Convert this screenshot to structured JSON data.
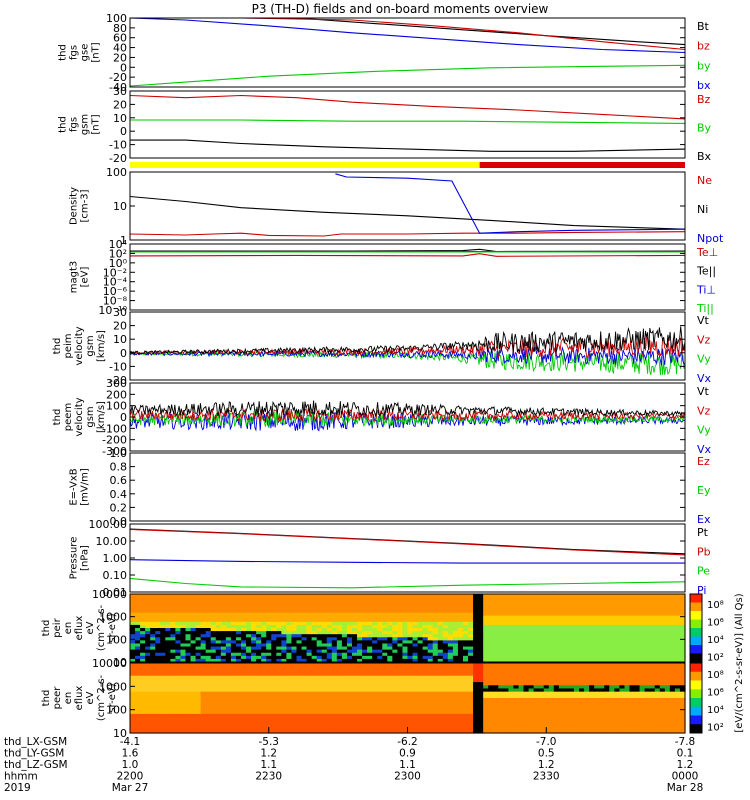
{
  "title": "P3 (TH-D) fields and on-board moments overview",
  "colors": {
    "black": "#000000",
    "red": "#cc0000",
    "green": "#00cc00",
    "blue": "#0000dd",
    "yellow": "#ffff00",
    "red_bar": "#dd0000"
  },
  "chart_data": [
    {
      "id": "fgs_gse",
      "type": "line",
      "ylabel": [
        "thd",
        "fgs",
        "gse",
        "[nT]"
      ],
      "yticks": [
        "100",
        "80",
        "60",
        "40",
        "20",
        "0",
        "-20",
        "-40"
      ],
      "ylim": [
        -40,
        100
      ],
      "legend": [
        {
          "label": "Bt",
          "color": "black"
        },
        {
          "label": "bz",
          "color": "red"
        },
        {
          "label": "by",
          "color": "green"
        },
        {
          "label": "bx",
          "color": "blue"
        }
      ],
      "series": [
        {
          "color": "black",
          "x": [
            0,
            0.15,
            0.3,
            0.45,
            0.6,
            0.75,
            0.9,
            1.0
          ],
          "y": [
            120,
            110,
            100,
            88,
            76,
            64,
            53,
            46
          ]
        },
        {
          "color": "red",
          "x": [
            0,
            0.2,
            0.4,
            0.55,
            0.7,
            0.85,
            1.0
          ],
          "y": [
            118,
            108,
            96,
            84,
            70,
            52,
            36
          ]
        },
        {
          "color": "blue",
          "x": [
            0,
            0.1,
            0.25,
            0.4,
            0.55,
            0.7,
            0.85,
            1.0
          ],
          "y": [
            102,
            96,
            84,
            70,
            58,
            46,
            36,
            30
          ]
        },
        {
          "color": "green",
          "x": [
            0,
            0.1,
            0.25,
            0.45,
            0.65,
            0.85,
            1.0
          ],
          "y": [
            -38,
            -30,
            -18,
            -8,
            -1,
            2,
            4
          ]
        }
      ]
    },
    {
      "id": "fgs_gsm",
      "type": "line",
      "ylabel": [
        "thd",
        "fgs",
        "gsm",
        "[nT]"
      ],
      "yticks": [
        "30",
        "20",
        "10",
        "0",
        "-10",
        "-20"
      ],
      "ylim": [
        -28,
        32
      ],
      "legend": [
        {
          "label": "Bz",
          "color": "red"
        },
        {
          "label": "By",
          "color": "green"
        },
        {
          "label": "Bx",
          "color": "black"
        }
      ],
      "series": [
        {
          "color": "red",
          "x": [
            0,
            0.1,
            0.2,
            0.3,
            0.4,
            0.55,
            0.7,
            0.85,
            1.0
          ],
          "y": [
            28,
            26,
            28,
            26,
            22,
            18,
            15,
            11,
            7
          ]
        },
        {
          "color": "green",
          "x": [
            0,
            0.2,
            0.4,
            0.6,
            0.8,
            1.0
          ],
          "y": [
            6,
            6,
            5,
            5,
            4,
            3
          ]
        },
        {
          "color": "black",
          "x": [
            0,
            0.1,
            0.2,
            0.35,
            0.5,
            0.65,
            0.8,
            0.9,
            1.0
          ],
          "y": [
            -12,
            -12,
            -15,
            -18,
            -20,
            -22,
            -22,
            -21,
            -20
          ]
        }
      ]
    },
    {
      "id": "mode_bar",
      "type": "bar",
      "segments": [
        {
          "x0": 0,
          "x1": 0.63,
          "color": "yellow"
        },
        {
          "x0": 0.63,
          "x1": 1.0,
          "color": "red_bar"
        }
      ]
    },
    {
      "id": "density",
      "type": "line",
      "scale": "log",
      "ylabel": [
        "Density",
        "[cm-3]"
      ],
      "yticks": [
        "100",
        "10",
        "1"
      ],
      "ylim": [
        0.3,
        300
      ],
      "legend": [
        {
          "label": "Ne",
          "color": "red"
        },
        {
          "label": "Ni",
          "color": "black"
        },
        {
          "label": "Npot",
          "color": "blue"
        }
      ],
      "series": [
        {
          "color": "black",
          "x": [
            0,
            0.1,
            0.2,
            0.35,
            0.5,
            0.65,
            0.8,
            1.0
          ],
          "y": [
            25,
            15,
            8,
            5,
            3.5,
            2.2,
            1.3,
            0.9
          ]
        },
        {
          "color": "red",
          "x": [
            0,
            0.1,
            0.15,
            0.2,
            0.25,
            0.35,
            0.38,
            0.5,
            0.6,
            0.7,
            0.8,
            1.0
          ],
          "y": [
            0.55,
            0.5,
            0.55,
            0.6,
            0.48,
            0.45,
            0.55,
            0.55,
            0.6,
            0.6,
            0.65,
            0.7
          ]
        },
        {
          "color": "blue",
          "x": [
            0.37,
            0.39,
            0.5,
            0.58,
            0.63,
            0.7,
            0.8,
            1.0
          ],
          "y": [
            250,
            180,
            160,
            120,
            0.6,
            0.7,
            0.8,
            0.9
          ]
        }
      ]
    },
    {
      "id": "temperature",
      "type": "line",
      "scale": "log",
      "ylabel": [
        "magt3",
        "[eV]"
      ],
      "yticks": [
        "10⁴",
        "10²",
        "10⁰",
        "10⁻²",
        "10⁻⁴",
        "10⁻⁶",
        "10⁻⁸",
        "10⁻¹⁰"
      ],
      "ylim": [
        -10,
        5
      ],
      "legend": [
        {
          "label": "Te⊥",
          "color": "red"
        },
        {
          "label": "Te||",
          "color": "black"
        },
        {
          "label": "Ti⊥",
          "color": "blue"
        },
        {
          "label": "Ti||",
          "color": "green"
        }
      ],
      "series": [
        {
          "color": "black",
          "x": [
            0,
            0.4,
            0.6,
            0.63,
            0.66,
            1.0
          ],
          "y": [
            3.4,
            3.4,
            3.5,
            3.8,
            3.3,
            3.4
          ]
        },
        {
          "color": "blue",
          "x": [
            0,
            1.0
          ],
          "y": [
            3.3,
            3.3
          ]
        },
        {
          "color": "green",
          "x": [
            0,
            1.0
          ],
          "y": [
            3.2,
            3.2
          ]
        },
        {
          "color": "red",
          "x": [
            0,
            0.3,
            0.6,
            0.63,
            0.66,
            1.0
          ],
          "y": [
            2.3,
            2.4,
            2.3,
            2.8,
            2.2,
            2.4
          ]
        }
      ]
    },
    {
      "id": "peim_velocity",
      "type": "line",
      "noisy": true,
      "ylabel": [
        "thd",
        "peim",
        "velocity",
        "gsm",
        "[km/s]"
      ],
      "yticks": [
        "30",
        "20",
        "10",
        "0",
        "-10",
        "-20"
      ],
      "ylim": [
        -20,
        32
      ],
      "legend": [
        {
          "label": "Vt",
          "color": "black"
        },
        {
          "label": "Vz",
          "color": "red"
        },
        {
          "label": "Vy",
          "color": "green"
        },
        {
          "label": "Vx",
          "color": "blue"
        }
      ],
      "series": [
        {
          "color": "green",
          "base": [
            [
              0,
              0
            ],
            [
              0.5,
              -1
            ],
            [
              0.65,
              -5
            ],
            [
              1.0,
              -8
            ]
          ],
          "amp": [
            [
              0,
              1
            ],
            [
              0.6,
              3
            ],
            [
              0.65,
              7
            ],
            [
              1.0,
              9
            ]
          ]
        },
        {
          "color": "blue",
          "base": [
            [
              0,
              0
            ],
            [
              0.5,
              0
            ],
            [
              0.65,
              -1
            ],
            [
              1.0,
              -2
            ]
          ],
          "amp": [
            [
              0,
              1
            ],
            [
              0.6,
              3
            ],
            [
              0.65,
              6
            ],
            [
              1.0,
              7
            ]
          ]
        },
        {
          "color": "red",
          "base": [
            [
              0,
              1
            ],
            [
              0.5,
              2
            ],
            [
              0.65,
              4
            ],
            [
              1.0,
              6
            ]
          ],
          "amp": [
            [
              0,
              1
            ],
            [
              0.6,
              3
            ],
            [
              0.65,
              7
            ],
            [
              1.0,
              8
            ]
          ]
        },
        {
          "color": "black",
          "base": [
            [
              0,
              1
            ],
            [
              0.5,
              4
            ],
            [
              0.65,
              8
            ],
            [
              1.0,
              12
            ]
          ],
          "amp": [
            [
              0,
              1
            ],
            [
              0.6,
              3
            ],
            [
              0.65,
              8
            ],
            [
              1.0,
              9
            ]
          ]
        }
      ]
    },
    {
      "id": "peem_velocity",
      "type": "line",
      "noisy": true,
      "ylabel": [
        "thd",
        "peem",
        "velocity",
        "gsm",
        "[km/s]"
      ],
      "yticks": [
        "300",
        "200",
        "100",
        "0",
        "-100",
        "-200",
        "-300"
      ],
      "ylim": [
        -300,
        300
      ],
      "legend": [
        {
          "label": "Vt",
          "color": "black"
        },
        {
          "label": "Vz",
          "color": "red"
        },
        {
          "label": "Vy",
          "color": "green"
        },
        {
          "label": "Vx",
          "color": "blue"
        }
      ],
      "series": [
        {
          "color": "blue",
          "base": [
            [
              0,
              -40
            ],
            [
              1.0,
              -30
            ]
          ],
          "amp": [
            [
              0,
              60
            ],
            [
              0.3,
              90
            ],
            [
              0.6,
              50
            ],
            [
              1.0,
              30
            ]
          ]
        },
        {
          "color": "green",
          "base": [
            [
              0,
              -20
            ],
            [
              1.0,
              -20
            ]
          ],
          "amp": [
            [
              0,
              50
            ],
            [
              0.3,
              70
            ],
            [
              0.6,
              40
            ],
            [
              1.0,
              25
            ]
          ]
        },
        {
          "color": "red",
          "base": [
            [
              0,
              20
            ],
            [
              1.0,
              10
            ]
          ],
          "amp": [
            [
              0,
              40
            ],
            [
              0.3,
              60
            ],
            [
              0.6,
              40
            ],
            [
              1.0,
              25
            ]
          ]
        },
        {
          "color": "black",
          "base": [
            [
              0,
              60
            ],
            [
              0.3,
              80
            ],
            [
              0.6,
              60
            ],
            [
              1.0,
              30
            ]
          ],
          "amp": [
            [
              0,
              40
            ],
            [
              0.3,
              80
            ],
            [
              0.6,
              40
            ],
            [
              1.0,
              20
            ]
          ]
        }
      ]
    },
    {
      "id": "efield",
      "type": "line",
      "ylabel": [
        "E=-VxB",
        "[mV/m]"
      ],
      "yticks": [
        "1.0",
        "0.8",
        "0.6",
        "0.4",
        "0.2",
        "0.0"
      ],
      "ylim": [
        0,
        1
      ],
      "legend": [
        {
          "label": "Ez",
          "color": "red"
        },
        {
          "label": "Ey",
          "color": "green"
        },
        {
          "label": "Ex",
          "color": "blue"
        }
      ],
      "series": []
    },
    {
      "id": "pressure",
      "type": "line",
      "scale": "log",
      "ylabel": [
        "Pressure",
        "[nPa]"
      ],
      "yticks": [
        "100.00",
        "10.00",
        "1.00",
        "0.10",
        "0.01"
      ],
      "ylim": [
        -2,
        2
      ],
      "legend": [
        {
          "label": "Pt",
          "color": "black"
        },
        {
          "label": "Pb",
          "color": "red"
        },
        {
          "label": "Pe",
          "color": "green"
        },
        {
          "label": "Pi",
          "color": "blue"
        }
      ],
      "series": [
        {
          "color": "black",
          "x": [
            0,
            0.2,
            0.4,
            0.6,
            0.8,
            1.0
          ],
          "y": [
            1.7,
            1.45,
            1.15,
            0.85,
            0.5,
            0.25
          ]
        },
        {
          "color": "red",
          "x": [
            0,
            0.2,
            0.4,
            0.6,
            0.8,
            1.0
          ],
          "y": [
            1.68,
            1.43,
            1.13,
            0.83,
            0.47,
            0.18
          ]
        },
        {
          "color": "blue",
          "x": [
            0,
            0.2,
            0.4,
            0.6,
            0.8,
            1.0
          ],
          "y": [
            -0.1,
            -0.2,
            -0.25,
            -0.3,
            -0.3,
            -0.3
          ]
        },
        {
          "color": "green",
          "x": [
            0,
            0.1,
            0.2,
            0.4,
            0.6,
            0.8,
            1.0
          ],
          "y": [
            -1.2,
            -1.5,
            -1.7,
            -1.75,
            -1.6,
            -1.5,
            -1.4
          ]
        }
      ]
    },
    {
      "id": "peir_spectrogram",
      "type": "heatmap",
      "ylabel": [
        "thd",
        "peir",
        "en",
        "eflux",
        "eV",
        "(cm^2-s-",
        "sr-eV)"
      ],
      "yticks": [
        "10000",
        "1000",
        "100",
        "10"
      ],
      "ylim": [
        6,
        20000
      ]
    },
    {
      "id": "peer_spectrogram",
      "type": "heatmap",
      "ylabel": [
        "thd",
        "peer",
        "en",
        "eflux",
        "eV",
        "(cm^2-s-",
        "sr-eV)"
      ],
      "yticks": [
        "10000",
        "1000",
        "100",
        "10"
      ],
      "ylim": [
        6,
        20000
      ]
    }
  ],
  "colorbar": {
    "ticks": [
      "10⁸",
      "10⁶",
      "10⁴",
      "10²",
      "10⁸",
      "10⁶",
      "10⁴",
      "10²"
    ],
    "label": "[eV/(cm^2-s-sr-eV)] (All Qs)"
  },
  "axis": {
    "rows": [
      {
        "label": "thd_LX-GSM",
        "values": [
          "-4.1",
          "-5.3",
          "-6.2",
          "-7.0",
          "-7.8"
        ]
      },
      {
        "label": "thd_LY-GSM",
        "values": [
          "1.6",
          "1.2",
          "0.9",
          "0.5",
          "0.1"
        ]
      },
      {
        "label": "thd_LZ-GSM",
        "values": [
          "1.0",
          "1.1",
          "1.1",
          "1.2",
          "1.2"
        ]
      },
      {
        "label": "hhmm",
        "values": [
          "2200",
          "2230",
          "2300",
          "2330",
          "0000"
        ]
      },
      {
        "label": "2019",
        "values": [
          "Mar 27",
          "",
          "",
          "",
          "Mar 28"
        ]
      }
    ]
  }
}
